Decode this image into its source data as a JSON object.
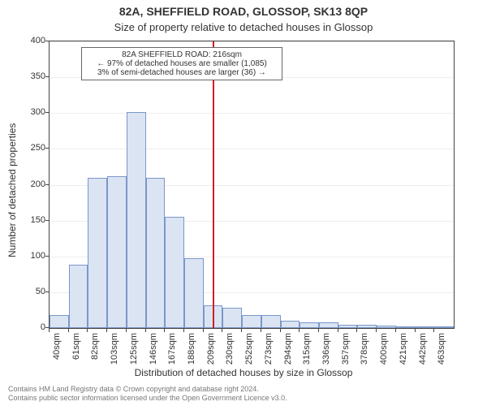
{
  "title_main": "82A, SHEFFIELD ROAD, GLOSSOP, SK13 8QP",
  "title_sub": "Size of property relative to detached houses in Glossop",
  "y_axis_label": "Number of detached properties",
  "x_axis_label": "Distribution of detached houses by size in Glossop",
  "attribution_line1": "Contains HM Land Registry data © Crown copyright and database right 2024.",
  "attribution_line2": "Contains public sector information licensed under the Open Government Licence v3.0.",
  "chart": {
    "type": "histogram",
    "background_color": "#ffffff",
    "axis_color": "#444444",
    "grid_color": "#eeeeee",
    "bar_fill": "#dbe4f3",
    "bar_border": "#7a97c9",
    "highlight_line_color": "#d02020",
    "text_color": "#333333",
    "title_fontsize": 14,
    "subtitle_fontsize": 13,
    "axis_label_fontsize": 12,
    "tick_fontsize": 11,
    "annotation_fontsize": 10,
    "ylim": [
      0,
      400
    ],
    "ytick_step": 50,
    "x_start": 40,
    "x_step": 21,
    "x_range": [
      40,
      475
    ],
    "bars": [
      18,
      88,
      210,
      212,
      302,
      210,
      155,
      98,
      32,
      28,
      18,
      18,
      10,
      8,
      8,
      4,
      4,
      3,
      2,
      2,
      2
    ],
    "highlight_value_sqm": 216
  },
  "x_tick_labels": [
    "40sqm",
    "61sqm",
    "82sqm",
    "103sqm",
    "125sqm",
    "146sqm",
    "167sqm",
    "188sqm",
    "209sqm",
    "230sqm",
    "252sqm",
    "273sqm",
    "294sqm",
    "315sqm",
    "336sqm",
    "357sqm",
    "378sqm",
    "400sqm",
    "421sqm",
    "442sqm",
    "463sqm"
  ],
  "y_tick_labels": [
    "0",
    "50",
    "100",
    "150",
    "200",
    "250",
    "300",
    "350",
    "400"
  ],
  "annotation": {
    "line1": "82A SHEFFIELD ROAD: 216sqm",
    "line2": "← 97% of detached houses are smaller (1,085)",
    "line3": "3% of semi-detached houses are larger (36) →",
    "border_color": "#666666",
    "background_color": "#ffffff"
  }
}
